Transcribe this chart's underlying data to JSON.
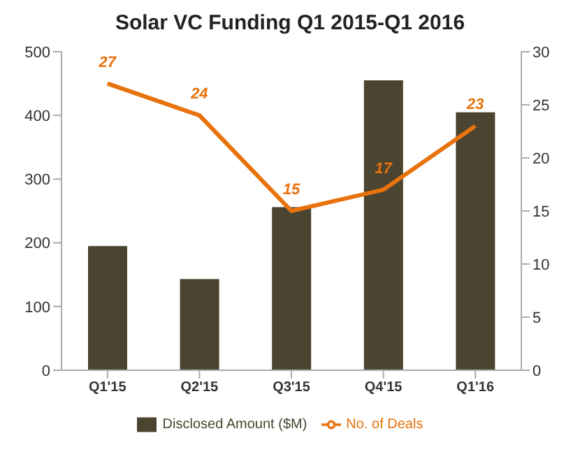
{
  "chart_data": {
    "type": "bar",
    "title": "Solar VC Funding Q1 2015-Q1 2016",
    "categories": [
      "Q1'15",
      "Q2'15",
      "Q3'15",
      "Q4'15",
      "Q1'16"
    ],
    "series": [
      {
        "name": "Disclosed Amount ($M)",
        "color": "#4a4430",
        "values": [
          195,
          143,
          256,
          455,
          405
        ]
      },
      {
        "name": "No. of Deals",
        "type": "line",
        "axis": "y2",
        "color": "#e8720c",
        "values": [
          27,
          24,
          15,
          17,
          23
        ],
        "value_labels": [
          "27",
          "24",
          "15",
          "17",
          "23"
        ]
      }
    ],
    "ylim": [
      0,
      500
    ],
    "yticks": [
      0,
      100,
      200,
      300,
      400,
      500
    ],
    "y2lim": [
      0,
      30
    ],
    "y2ticks": [
      0,
      5,
      10,
      15,
      20,
      25,
      30
    ],
    "grid": false,
    "legend": "bottom",
    "marker": "none"
  }
}
